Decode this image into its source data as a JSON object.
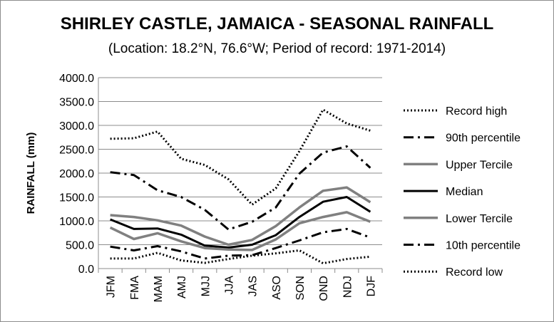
{
  "chart_data": {
    "type": "line",
    "title": "SHIRLEY CASTLE, JAMAICA - SEASONAL RAINFALL",
    "subtitle": "(Location: 18.2°N, 76.6°W; Period of record: 1971-2014)",
    "ylabel": "RAINFALL (mm)",
    "xlabel": "",
    "ylim": [
      0,
      4000
    ],
    "yticks": [
      "4000.0",
      "3500.0",
      "3000.0",
      "2500.0",
      "2000.0",
      "1500.0",
      "1000.0",
      "500.0",
      "0.0"
    ],
    "categories": [
      "JFM",
      "FMA",
      "MAM",
      "AMJ",
      "MJJ",
      "JJA",
      "JAS",
      "ASO",
      "SON",
      "OND",
      "NDJ",
      "DJF"
    ],
    "grid": true,
    "legend_position": "right",
    "series": [
      {
        "name": "Record high",
        "color": "#000000",
        "style": "dotted",
        "values": [
          2720,
          2730,
          2870,
          2300,
          2170,
          1870,
          1340,
          1680,
          2460,
          3330,
          3040,
          2890
        ]
      },
      {
        "name": "90th percentile",
        "color": "#000000",
        "style": "dashdot",
        "values": [
          2020,
          1960,
          1640,
          1500,
          1230,
          820,
          980,
          1280,
          1990,
          2430,
          2560,
          2110
        ]
      },
      {
        "name": "Upper Tercile",
        "color": "#808080",
        "style": "solid",
        "values": [
          1120,
          1080,
          1010,
          900,
          670,
          500,
          600,
          890,
          1280,
          1630,
          1700,
          1390
        ]
      },
      {
        "name": "Median",
        "color": "#000000",
        "style": "solid",
        "values": [
          1030,
          830,
          840,
          710,
          480,
          440,
          500,
          700,
          1080,
          1400,
          1500,
          1190
        ]
      },
      {
        "name": "Lower Tercile",
        "color": "#808080",
        "style": "solid",
        "values": [
          860,
          620,
          740,
          570,
          430,
          400,
          390,
          610,
          950,
          1080,
          1180,
          980
        ]
      },
      {
        "name": "10th percentile",
        "color": "#000000",
        "style": "dashdot",
        "values": [
          460,
          380,
          470,
          360,
          210,
          270,
          280,
          430,
          590,
          760,
          830,
          650
        ]
      },
      {
        "name": "Record low",
        "color": "#000000",
        "style": "dotted",
        "values": [
          210,
          210,
          330,
          170,
          120,
          200,
          270,
          320,
          380,
          110,
          200,
          250
        ]
      }
    ]
  }
}
